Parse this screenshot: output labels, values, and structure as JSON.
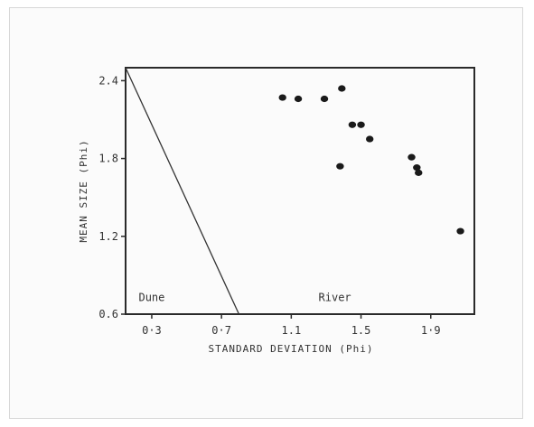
{
  "chart_data": {
    "type": "scatter",
    "title": "",
    "xlabel": "STANDARD DEVIATION (Phi)",
    "ylabel": "MEAN SIZE (Phi)",
    "xlim": [
      0.15,
      2.15
    ],
    "ylim": [
      0.6,
      2.5
    ],
    "x_ticks": [
      {
        "value": 0.3,
        "label": "0·3"
      },
      {
        "value": 0.7,
        "label": "0·7"
      },
      {
        "value": 1.1,
        "label": "1.1"
      },
      {
        "value": 1.5,
        "label": "1.5"
      },
      {
        "value": 1.9,
        "label": "1·9"
      }
    ],
    "y_ticks": [
      {
        "value": 0.6,
        "label": "0.6"
      },
      {
        "value": 1.2,
        "label": "1.2"
      },
      {
        "value": 1.8,
        "label": "1.8"
      },
      {
        "value": 2.4,
        "label": "2.4"
      }
    ],
    "points": [
      {
        "x": 1.05,
        "y": 2.27
      },
      {
        "x": 1.14,
        "y": 2.26
      },
      {
        "x": 1.29,
        "y": 2.26
      },
      {
        "x": 1.39,
        "y": 2.34
      },
      {
        "x": 1.45,
        "y": 2.06
      },
      {
        "x": 1.5,
        "y": 2.06
      },
      {
        "x": 1.55,
        "y": 1.95
      },
      {
        "x": 1.38,
        "y": 1.74
      },
      {
        "x": 1.79,
        "y": 1.81
      },
      {
        "x": 1.82,
        "y": 1.73
      },
      {
        "x": 1.83,
        "y": 1.69
      },
      {
        "x": 2.07,
        "y": 1.24
      }
    ],
    "boundary_line": {
      "from": {
        "x": 0.15,
        "y": 2.5
      },
      "to": {
        "x": 0.8,
        "y": 0.6
      }
    },
    "regions": [
      {
        "label": "Dune",
        "x": 0.3,
        "y": 0.7
      },
      {
        "label": "River",
        "x": 1.35,
        "y": 0.7
      }
    ],
    "grid": false,
    "colors": {
      "axis": "#2a2a2a",
      "points": "#1a1a1a",
      "line": "#333333"
    }
  }
}
